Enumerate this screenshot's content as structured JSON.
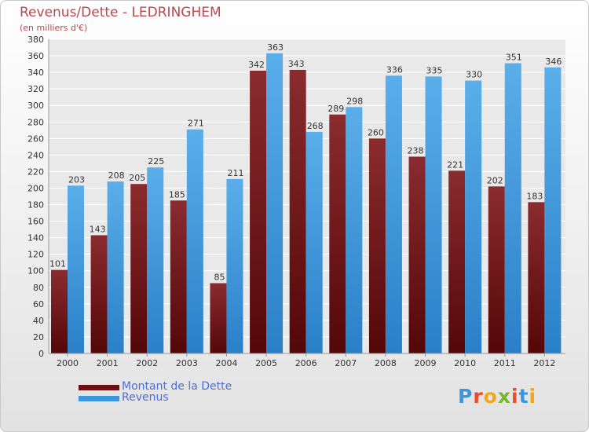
{
  "title": "Revenus/Dette - LEDRINGHEM",
  "subtitle": "(en milliers d'€)",
  "brand": "Proxiti",
  "chart_data": {
    "type": "bar",
    "categories": [
      "2000",
      "2001",
      "2002",
      "2003",
      "2004",
      "2005",
      "2006",
      "2007",
      "2008",
      "2009",
      "2010",
      "2011",
      "2012"
    ],
    "series": [
      {
        "name": "Montant de la Dette",
        "color": "#6b0f12",
        "values": [
          101,
          143,
          205,
          185,
          85,
          342,
          343,
          289,
          260,
          238,
          221,
          202,
          183
        ]
      },
      {
        "name": "Revenus",
        "color": "#3c96de",
        "values": [
          203,
          208,
          225,
          271,
          211,
          363,
          268,
          298,
          336,
          335,
          330,
          351,
          346
        ]
      }
    ],
    "ylim": [
      0,
      380
    ],
    "yticks": [
      0,
      20,
      40,
      60,
      80,
      100,
      120,
      140,
      160,
      180,
      200,
      220,
      240,
      260,
      280,
      300,
      320,
      340,
      360,
      380
    ],
    "grid": true,
    "legend_position": "bottom-left"
  }
}
